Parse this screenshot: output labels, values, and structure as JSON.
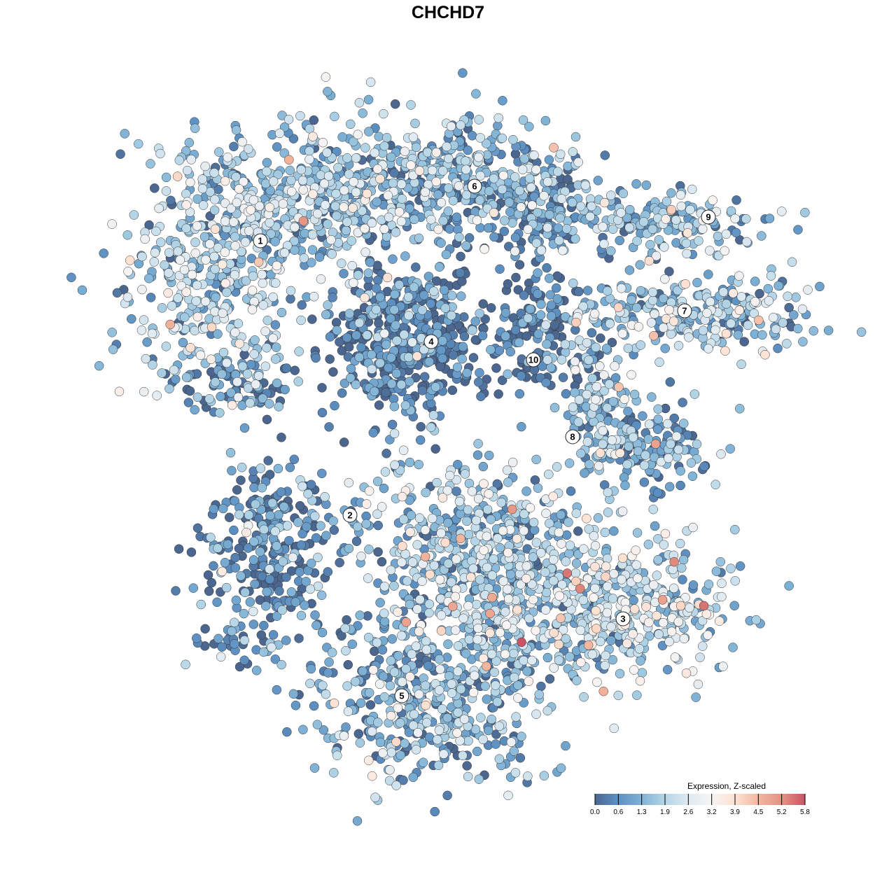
{
  "chart_data": {
    "type": "scatter",
    "title": "CHCHD7",
    "xlabel": "",
    "ylabel": "",
    "grid": false,
    "axes_visible": false,
    "xlim": [
      -16,
      16
    ],
    "ylim": [
      -16,
      16
    ],
    "color_scale": {
      "title": "Expression, Z-scaled",
      "ticks": [
        "0.0",
        "0.6",
        "1.3",
        "1.9",
        "2.6",
        "3.2",
        "3.9",
        "4.5",
        "5.2",
        "5.8"
      ],
      "values": [
        0.0,
        0.6,
        1.3,
        1.9,
        2.6,
        3.2,
        3.9,
        4.5,
        5.2,
        5.8
      ],
      "colors": [
        "#4b6790",
        "#5b8ec0",
        "#80b3d6",
        "#b2d4e6",
        "#dfeaf2",
        "#f7f4f3",
        "#fde0d1",
        "#f3b7a0",
        "#e38f80",
        "#c75566"
      ],
      "placement": "bottom-right"
    },
    "cluster_labels": [
      {
        "label": "1",
        "x": -6.7,
        "y": 7.4
      },
      {
        "label": "2",
        "x": -3.5,
        "y": -2.4
      },
      {
        "label": "3",
        "x": 6.25,
        "y": -6.1
      },
      {
        "label": "4",
        "x": -0.6,
        "y": 3.8
      },
      {
        "label": "5",
        "x": -1.65,
        "y": -8.85
      },
      {
        "label": "6",
        "x": 0.95,
        "y": 9.35
      },
      {
        "label": "7",
        "x": 8.45,
        "y": 4.9
      },
      {
        "label": "8",
        "x": 4.45,
        "y": 0.4
      },
      {
        "label": "9",
        "x": 9.3,
        "y": 8.25
      },
      {
        "label": "10",
        "x": 3.05,
        "y": 3.15
      }
    ],
    "point_groups": [
      {
        "cluster": "1",
        "x": -8.5,
        "y": 6.0,
        "sx": 1.6,
        "sy": 2.0,
        "n": 380,
        "mean_expression": 1.7
      },
      {
        "cluster": "1",
        "x": -4.8,
        "y": 9.0,
        "sx": 2.2,
        "sy": 1.3,
        "n": 420,
        "mean_expression": 1.6
      },
      {
        "cluster": "1",
        "x": -7.5,
        "y": 2.2,
        "sx": 1.0,
        "sy": 0.5,
        "n": 90,
        "mean_expression": 0.5
      },
      {
        "cluster": "6",
        "x": 0.0,
        "y": 9.5,
        "sx": 2.3,
        "sy": 1.1,
        "n": 380,
        "mean_expression": 1.3
      },
      {
        "cluster": "6",
        "x": 3.3,
        "y": 8.5,
        "sx": 1.3,
        "sy": 1.0,
        "n": 160,
        "mean_expression": 0.9
      },
      {
        "cluster": "4",
        "x": -1.5,
        "y": 3.75,
        "sx": 1.35,
        "sy": 1.35,
        "n": 480,
        "mean_expression": 0.35
      },
      {
        "cluster": "10",
        "x": 3.0,
        "y": 4.0,
        "sx": 1.0,
        "sy": 1.0,
        "n": 130,
        "mean_expression": 0.4
      },
      {
        "cluster": "9",
        "x": 8.25,
        "y": 8.0,
        "sx": 1.5,
        "sy": 0.6,
        "n": 160,
        "mean_expression": 1.3
      },
      {
        "cluster": "7",
        "x": 9.0,
        "y": 4.75,
        "sx": 2.0,
        "sy": 0.75,
        "n": 240,
        "mean_expression": 1.4
      },
      {
        "cluster": "8",
        "x": 5.25,
        "y": 2.25,
        "sx": 0.75,
        "sy": 1.5,
        "n": 130,
        "mean_expression": 1.4
      },
      {
        "cluster": "8",
        "x": 7.0,
        "y": 0.0,
        "sx": 1.1,
        "sy": 0.75,
        "n": 160,
        "mean_expression": 1.0
      },
      {
        "cluster": "2",
        "x": -6.25,
        "y": -3.5,
        "sx": 1.25,
        "sy": 1.5,
        "n": 260,
        "mean_expression": 0.45
      },
      {
        "cluster": "3",
        "x": 6.0,
        "y": -5.75,
        "sx": 2.25,
        "sy": 1.25,
        "n": 420,
        "mean_expression": 2.0
      },
      {
        "cluster": "3",
        "x": 1.0,
        "y": -4.0,
        "sx": 2.5,
        "sy": 1.75,
        "n": 620,
        "mean_expression": 1.6
      },
      {
        "cluster": "5",
        "x": -0.5,
        "y": -9.0,
        "sx": 2.25,
        "sy": 1.4,
        "n": 470,
        "mean_expression": 1.2
      },
      {
        "cluster": "2",
        "x": -7.25,
        "y": -7.0,
        "sx": 1.0,
        "sy": 0.5,
        "n": 40,
        "mean_expression": 0.7
      }
    ]
  }
}
